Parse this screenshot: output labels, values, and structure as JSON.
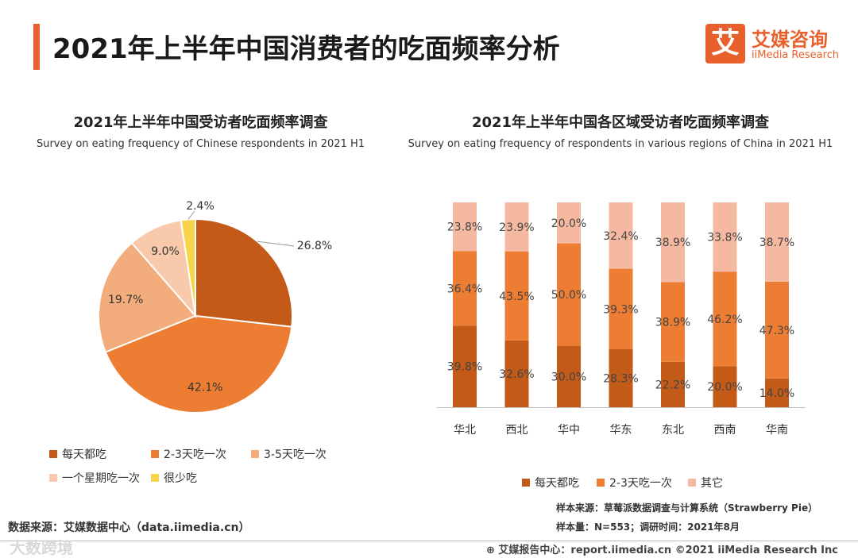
{
  "header": {
    "title": "2021年上半年中国消费者的吃面频率分析"
  },
  "logo": {
    "mark": "艾",
    "name_cn": "艾媒咨询",
    "name_en": "iiMedia Research"
  },
  "colors": {
    "accent": "#e8602c",
    "daily": "#c35a17",
    "two_three": "#ec7d32",
    "three_five": "#f3ad7c",
    "weekly": "#f8c9aa",
    "rarely": "#f7d44a",
    "other": "#f4b9a0"
  },
  "chart_data": [
    {
      "type": "pie",
      "title": "2021年上半年中国受访者吃面频率调查",
      "subtitle": "Survey on eating frequency of Chinese respondents in 2021 H1",
      "categories": [
        "每天都吃",
        "2-3天吃一次",
        "3-5天吃一次",
        "一个星期吃一次",
        "很少吃"
      ],
      "values": [
        26.8,
        42.1,
        19.7,
        9.0,
        2.4
      ],
      "labels": [
        "26.8%",
        "42.1%",
        "19.7%",
        "9.0%",
        "2.4%"
      ]
    },
    {
      "type": "bar",
      "stacked": true,
      "title": "2021年上半年中国各区域受访者吃面频率调查",
      "subtitle": "Survey on eating frequency of respondents in various regions of China in 2021 H1",
      "categories": [
        "华北",
        "西北",
        "华中",
        "华东",
        "东北",
        "西南",
        "华南"
      ],
      "series": [
        {
          "name": "每天都吃",
          "values": [
            39.8,
            32.6,
            30.0,
            28.3,
            22.2,
            20.0,
            14.0
          ],
          "labels": [
            "39.8%",
            "32.6%",
            "30.0%",
            "28.3%",
            "22.2%",
            "20.0%",
            "14.0%"
          ]
        },
        {
          "name": "2-3天吃一次",
          "values": [
            36.4,
            43.5,
            50.0,
            39.3,
            38.9,
            46.2,
            47.3
          ],
          "labels": [
            "36.4%",
            "43.5%",
            "50.0%",
            "39.3%",
            "38.9%",
            "46.2%",
            "47.3%"
          ]
        },
        {
          "name": "其它",
          "values": [
            23.8,
            23.9,
            20.0,
            32.4,
            38.9,
            33.8,
            38.7
          ],
          "labels": [
            "23.8%",
            "23.9%",
            "20.0%",
            "32.4%",
            "38.9%",
            "33.8%",
            "38.7%"
          ]
        }
      ],
      "ylim": [
        0,
        100
      ]
    }
  ],
  "footer": {
    "source_left": "数据来源：艾媒数据中心（data.iimedia.cn）",
    "sample_source": "样本来源：草莓派数据调查与计算系统（Strawberry Pie）",
    "sample_size": "样本量：N=553；调研时间：2021年8月",
    "report_center": "艾媒报告中心：report.iimedia.cn ©2021  iiMedia Research  Inc",
    "watermark": "大数跨境"
  }
}
